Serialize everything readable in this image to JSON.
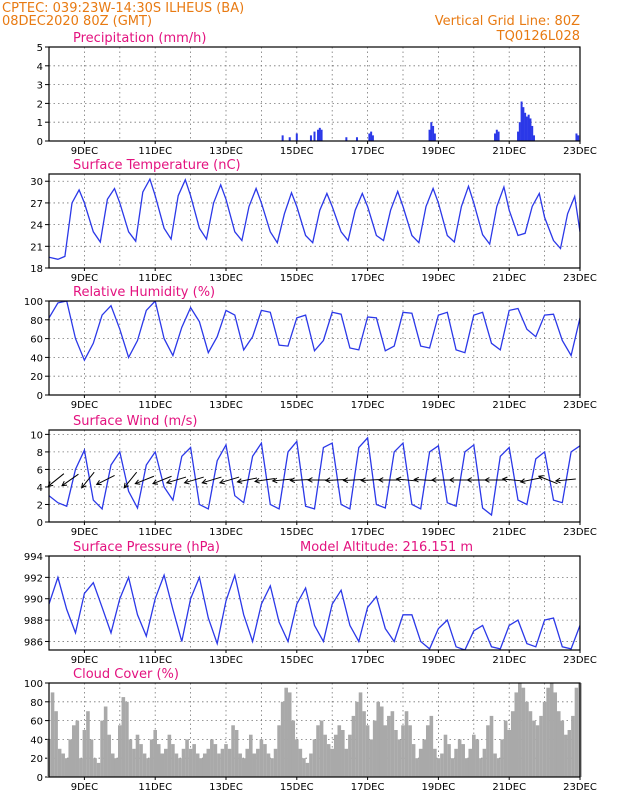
{
  "header": {
    "line1_left": "CPTEC:    039:23W-14:30S   ILHEUS (BA)",
    "line2_left": "08DEC2020 80Z (GMT)",
    "line1_right": "Vertical Grid Line: 80Z",
    "line2_right": "TQ0126L028"
  },
  "x_axis": {
    "start_day": 8,
    "end_day": 23,
    "tick_labels": [
      "9DEC",
      "11DEC",
      "13DEC",
      "15DEC",
      "17DEC",
      "19DEC",
      "21DEC",
      "23DEC"
    ]
  },
  "colors": {
    "line": "#2b38e8",
    "cloud": "#a9a9a9",
    "header": "#e87a12",
    "title": "#e3127f"
  },
  "chart_data": [
    {
      "id": "precip",
      "type": "bar",
      "title": "Precipitation (mm/h)",
      "ylim": [
        0,
        5
      ],
      "yticks": [
        0,
        1,
        2,
        3,
        4,
        5
      ],
      "x": [
        14.6,
        14.8,
        15.0,
        15.4,
        15.5,
        15.6,
        15.65,
        15.7,
        16.4,
        16.7,
        17.05,
        17.1,
        17.15,
        18.75,
        18.8,
        18.85,
        18.9,
        20.6,
        20.65,
        20.7,
        21.25,
        21.3,
        21.35,
        21.4,
        21.45,
        21.5,
        21.55,
        21.6,
        21.65,
        21.7,
        22.9,
        22.95
      ],
      "values": [
        0.3,
        0.2,
        0.4,
        0.3,
        0.5,
        0.6,
        0.7,
        0.6,
        0.2,
        0.2,
        0.4,
        0.5,
        0.3,
        0.6,
        1.0,
        0.8,
        0.4,
        0.4,
        0.6,
        0.5,
        0.5,
        1.0,
        2.1,
        1.8,
        1.5,
        1.3,
        1.4,
        1.2,
        0.8,
        0.3,
        0.4,
        0.3
      ]
    },
    {
      "id": "temp",
      "type": "line",
      "title": "Surface Temperature (nC)",
      "ylim": [
        18,
        31
      ],
      "yticks": [
        18,
        21,
        24,
        27,
        30
      ],
      "x": [
        8.0,
        8.25,
        8.45,
        8.65,
        8.85,
        9.0,
        9.25,
        9.45,
        9.65,
        9.85,
        10.0,
        10.25,
        10.45,
        10.65,
        10.85,
        11.0,
        11.25,
        11.45,
        11.65,
        11.85,
        12.0,
        12.25,
        12.45,
        12.65,
        12.85,
        13.0,
        13.25,
        13.45,
        13.65,
        13.85,
        14.0,
        14.25,
        14.45,
        14.65,
        14.85,
        15.0,
        15.25,
        15.45,
        15.65,
        15.85,
        16.0,
        16.25,
        16.45,
        16.65,
        16.85,
        17.0,
        17.25,
        17.45,
        17.65,
        17.85,
        18.0,
        18.25,
        18.45,
        18.65,
        18.85,
        19.0,
        19.25,
        19.45,
        19.65,
        19.85,
        20.0,
        20.25,
        20.45,
        20.65,
        20.85,
        21.0,
        21.25,
        21.45,
        21.65,
        21.85,
        22.0,
        22.25,
        22.45,
        22.65,
        22.85,
        23.0
      ],
      "values": [
        19.5,
        19.2,
        19.6,
        27.0,
        28.8,
        27.0,
        23.0,
        21.6,
        27.5,
        29.0,
        27.0,
        23.0,
        21.7,
        28.5,
        30.3,
        28.0,
        23.5,
        22.0,
        28.0,
        30.2,
        28.0,
        23.5,
        22.0,
        27.0,
        29.5,
        27.5,
        23.0,
        21.8,
        26.5,
        29.0,
        27.0,
        23.0,
        21.5,
        25.5,
        28.4,
        26.5,
        22.5,
        21.5,
        26.0,
        28.3,
        26.5,
        23.0,
        21.8,
        26.0,
        28.3,
        26.5,
        22.5,
        21.8,
        26.0,
        28.6,
        26.5,
        22.5,
        21.5,
        26.5,
        29.0,
        27.0,
        22.5,
        21.6,
        26.5,
        29.3,
        27.0,
        22.6,
        21.3,
        26.5,
        29.2,
        26.0,
        22.5,
        22.8,
        26.5,
        28.3,
        25.0,
        21.8,
        20.7,
        25.5,
        27.9,
        23.0
      ]
    },
    {
      "id": "rh",
      "type": "line",
      "title": "Relative Humidity (%)",
      "ylim": [
        0,
        100
      ],
      "yticks": [
        0,
        20,
        40,
        60,
        80,
        100
      ],
      "x": [
        8.0,
        8.25,
        8.5,
        8.75,
        9.0,
        9.25,
        9.5,
        9.75,
        10.0,
        10.25,
        10.5,
        10.75,
        11.0,
        11.25,
        11.5,
        11.75,
        12.0,
        12.25,
        12.5,
        12.75,
        13.0,
        13.25,
        13.5,
        13.75,
        14.0,
        14.25,
        14.5,
        14.75,
        15.0,
        15.25,
        15.5,
        15.75,
        16.0,
        16.25,
        16.5,
        16.75,
        17.0,
        17.25,
        17.5,
        17.75,
        18.0,
        18.25,
        18.5,
        18.75,
        19.0,
        19.25,
        19.5,
        19.75,
        20.0,
        20.25,
        20.5,
        20.75,
        21.0,
        21.25,
        21.5,
        21.75,
        22.0,
        22.25,
        22.5,
        22.75,
        23.0
      ],
      "values": [
        82,
        98,
        100,
        60,
        37,
        55,
        85,
        95,
        70,
        40,
        58,
        90,
        100,
        60,
        42,
        72,
        93,
        78,
        45,
        62,
        90,
        85,
        48,
        62,
        90,
        88,
        53,
        52,
        82,
        85,
        47,
        58,
        88,
        86,
        50,
        48,
        83,
        82,
        47,
        52,
        88,
        87,
        52,
        50,
        85,
        88,
        48,
        45,
        85,
        88,
        55,
        48,
        90,
        92,
        70,
        62,
        85,
        86,
        58,
        42,
        82
      ]
    },
    {
      "id": "wind",
      "type": "line",
      "title": "Surface Wind (m/s)",
      "ylim": [
        0,
        10.5
      ],
      "yticks": [
        0,
        2,
        4,
        6,
        8,
        10
      ],
      "x": [
        8.0,
        8.25,
        8.5,
        8.75,
        9.0,
        9.25,
        9.5,
        9.75,
        10.0,
        10.25,
        10.5,
        10.75,
        11.0,
        11.25,
        11.5,
        11.75,
        12.0,
        12.25,
        12.5,
        12.75,
        13.0,
        13.25,
        13.5,
        13.75,
        14.0,
        14.25,
        14.5,
        14.75,
        15.0,
        15.25,
        15.5,
        15.75,
        16.0,
        16.25,
        16.5,
        16.75,
        17.0,
        17.25,
        17.5,
        17.75,
        18.0,
        18.25,
        18.5,
        18.75,
        19.0,
        19.25,
        19.5,
        19.75,
        20.0,
        20.25,
        20.5,
        20.75,
        21.0,
        21.25,
        21.5,
        21.75,
        22.0,
        22.25,
        22.5,
        22.75,
        23.0
      ],
      "values": [
        3.0,
        2.2,
        1.8,
        6.0,
        8.2,
        2.5,
        1.5,
        6.5,
        8.0,
        3.5,
        1.6,
        6.5,
        8.0,
        4.0,
        2.5,
        7.5,
        8.5,
        2.0,
        1.5,
        7.0,
        8.8,
        3.0,
        2.2,
        7.5,
        9.0,
        2.0,
        1.5,
        8.0,
        9.2,
        1.8,
        1.5,
        8.5,
        9.0,
        2.0,
        1.5,
        8.5,
        9.6,
        2.0,
        1.6,
        8.0,
        9.0,
        2.0,
        1.5,
        8.0,
        8.7,
        2.2,
        1.8,
        8.0,
        8.8,
        1.6,
        0.8,
        7.5,
        8.5,
        2.5,
        2.0,
        7.2,
        8.0,
        2.5,
        2.2,
        8.0,
        8.7
      ],
      "barbs": [
        {
          "x": 8.2,
          "dir": [
            -1,
            -0.8
          ]
        },
        {
          "x": 8.6,
          "dir": [
            -1,
            -0.7
          ]
        },
        {
          "x": 9.1,
          "dir": [
            -0.8,
            -1
          ]
        },
        {
          "x": 9.6,
          "dir": [
            -1,
            -0.5
          ]
        },
        {
          "x": 10.3,
          "dir": [
            -0.8,
            -1
          ]
        },
        {
          "x": 10.7,
          "dir": [
            -1,
            -0.4
          ]
        },
        {
          "x": 11.2,
          "dir": [
            -1,
            -0.4
          ]
        },
        {
          "x": 11.6,
          "dir": [
            -1,
            -0.3
          ]
        },
        {
          "x": 12.1,
          "dir": [
            -1,
            -0.3
          ]
        },
        {
          "x": 12.6,
          "dir": [
            -1,
            -0.3
          ]
        },
        {
          "x": 13.1,
          "dir": [
            -1,
            -0.3
          ]
        },
        {
          "x": 13.6,
          "dir": [
            -1,
            -0.2
          ]
        },
        {
          "x": 14.1,
          "dir": [
            -1,
            -0.15
          ]
        },
        {
          "x": 14.6,
          "dir": [
            -1,
            -0.1
          ]
        },
        {
          "x": 15.1,
          "dir": [
            -1,
            -0.05
          ]
        },
        {
          "x": 15.6,
          "dir": [
            -1,
            0
          ]
        },
        {
          "x": 16.1,
          "dir": [
            -1,
            -0.05
          ]
        },
        {
          "x": 16.6,
          "dir": [
            -1,
            -0.05
          ]
        },
        {
          "x": 17.1,
          "dir": [
            -1,
            -0.05
          ]
        },
        {
          "x": 17.6,
          "dir": [
            -1,
            0
          ]
        },
        {
          "x": 18.1,
          "dir": [
            -1,
            0.1
          ]
        },
        {
          "x": 18.6,
          "dir": [
            -1,
            0.05
          ]
        },
        {
          "x": 19.1,
          "dir": [
            -1,
            0
          ]
        },
        {
          "x": 19.6,
          "dir": [
            -1,
            0
          ]
        },
        {
          "x": 20.1,
          "dir": [
            -1,
            0
          ]
        },
        {
          "x": 20.6,
          "dir": [
            -1,
            0
          ]
        },
        {
          "x": 21.1,
          "dir": [
            -1,
            0.1
          ]
        },
        {
          "x": 21.6,
          "dir": [
            -1,
            -0.2
          ]
        },
        {
          "x": 22.1,
          "dir": [
            -1,
            0.4
          ]
        },
        {
          "x": 22.6,
          "dir": [
            -1,
            -0.1
          ]
        }
      ]
    },
    {
      "id": "pressure",
      "type": "line",
      "title": "Surface Pressure (hPa)",
      "annotation": "Model Altitude: 216.151  m",
      "ylim": [
        985.2,
        994
      ],
      "yticks": [
        986,
        988,
        990,
        992,
        994
      ],
      "x": [
        8.0,
        8.25,
        8.5,
        8.75,
        9.0,
        9.25,
        9.5,
        9.75,
        10.0,
        10.25,
        10.5,
        10.75,
        11.0,
        11.25,
        11.5,
        11.75,
        12.0,
        12.25,
        12.5,
        12.75,
        13.0,
        13.25,
        13.5,
        13.75,
        14.0,
        14.25,
        14.5,
        14.75,
        15.0,
        15.25,
        15.5,
        15.75,
        16.0,
        16.25,
        16.5,
        16.75,
        17.0,
        17.25,
        17.5,
        17.75,
        18.0,
        18.25,
        18.5,
        18.75,
        19.0,
        19.25,
        19.5,
        19.75,
        20.0,
        20.25,
        20.5,
        20.75,
        21.0,
        21.25,
        21.5,
        21.75,
        22.0,
        22.25,
        22.5,
        22.75,
        23.0
      ],
      "values": [
        989.5,
        992.0,
        989.0,
        986.8,
        990.5,
        991.5,
        989.2,
        986.8,
        990.0,
        992.0,
        988.5,
        986.5,
        990.0,
        992.2,
        989.0,
        986.0,
        990.0,
        992.0,
        988.2,
        985.8,
        989.8,
        992.2,
        988.5,
        986.0,
        989.5,
        991.2,
        987.8,
        986.0,
        989.5,
        991.0,
        987.5,
        986.0,
        989.5,
        990.8,
        987.5,
        986.0,
        989.2,
        990.2,
        987.2,
        986.0,
        988.5,
        988.5,
        986.0,
        985.3,
        987.2,
        988.0,
        985.5,
        985.2,
        987.0,
        987.5,
        985.5,
        985.3,
        987.5,
        988.0,
        985.8,
        985.5,
        988.0,
        988.2,
        985.5,
        985.3,
        987.5
      ]
    },
    {
      "id": "cloud",
      "type": "area",
      "title": "Cloud Cover (%)",
      "ylim": [
        0,
        100
      ],
      "yticks": [
        0,
        20,
        40,
        60,
        80,
        100
      ],
      "x": [
        8.0,
        8.1,
        8.2,
        8.3,
        8.4,
        8.5,
        8.6,
        8.7,
        8.8,
        8.9,
        9.0,
        9.1,
        9.2,
        9.3,
        9.4,
        9.5,
        9.6,
        9.7,
        9.8,
        9.9,
        10.0,
        10.1,
        10.2,
        10.3,
        10.4,
        10.5,
        10.6,
        10.7,
        10.8,
        10.9,
        11.0,
        11.1,
        11.2,
        11.3,
        11.4,
        11.5,
        11.6,
        11.7,
        11.8,
        11.9,
        12.0,
        12.1,
        12.2,
        12.3,
        12.4,
        12.5,
        12.6,
        12.7,
        12.8,
        12.9,
        13.0,
        13.1,
        13.2,
        13.3,
        13.4,
        13.5,
        13.6,
        13.7,
        13.8,
        13.9,
        14.0,
        14.1,
        14.2,
        14.3,
        14.4,
        14.5,
        14.6,
        14.7,
        14.8,
        14.9,
        15.0,
        15.1,
        15.2,
        15.3,
        15.4,
        15.5,
        15.6,
        15.7,
        15.8,
        15.9,
        16.0,
        16.1,
        16.2,
        16.3,
        16.4,
        16.5,
        16.6,
        16.7,
        16.8,
        16.9,
        17.0,
        17.1,
        17.2,
        17.3,
        17.4,
        17.5,
        17.6,
        17.7,
        17.8,
        17.9,
        18.0,
        18.1,
        18.2,
        18.3,
        18.4,
        18.5,
        18.6,
        18.7,
        18.8,
        18.9,
        19.0,
        19.1,
        19.2,
        19.3,
        19.4,
        19.5,
        19.6,
        19.7,
        19.8,
        19.9,
        20.0,
        20.1,
        20.2,
        20.3,
        20.4,
        20.5,
        20.6,
        20.7,
        20.8,
        20.9,
        21.0,
        21.1,
        21.2,
        21.3,
        21.4,
        21.5,
        21.6,
        21.7,
        21.8,
        21.9,
        22.0,
        22.1,
        22.2,
        22.3,
        22.4,
        22.5,
        22.6,
        22.7,
        22.8,
        22.9,
        23.0
      ],
      "values": [
        40,
        90,
        70,
        30,
        25,
        20,
        40,
        55,
        60,
        20,
        50,
        70,
        40,
        20,
        15,
        60,
        75,
        45,
        25,
        20,
        55,
        85,
        80,
        40,
        30,
        45,
        35,
        25,
        20,
        40,
        50,
        35,
        25,
        30,
        45,
        35,
        25,
        20,
        30,
        40,
        30,
        35,
        25,
        20,
        25,
        30,
        40,
        35,
        25,
        30,
        35,
        30,
        55,
        50,
        25,
        20,
        30,
        45,
        25,
        30,
        40,
        35,
        25,
        20,
        30,
        55,
        80,
        95,
        90,
        60,
        40,
        30,
        20,
        15,
        25,
        40,
        55,
        60,
        45,
        35,
        30,
        45,
        55,
        50,
        30,
        45,
        65,
        80,
        90,
        70,
        55,
        40,
        60,
        80,
        75,
        55,
        65,
        70,
        50,
        40,
        55,
        70,
        55,
        35,
        20,
        30,
        40,
        55,
        65,
        30,
        20,
        25,
        45,
        35,
        20,
        30,
        40,
        35,
        20,
        30,
        45,
        40,
        20,
        30,
        55,
        65,
        25,
        20,
        40,
        60,
        50,
        70,
        90,
        100,
        95,
        80,
        70,
        60,
        55,
        65,
        80,
        95,
        100,
        90,
        70,
        60,
        45,
        50,
        65,
        95,
        100
      ]
    }
  ]
}
